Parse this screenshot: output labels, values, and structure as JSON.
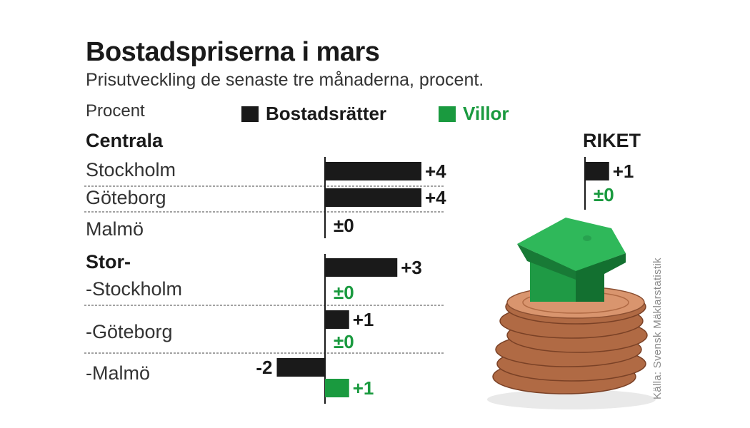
{
  "title": "Bostadspriserna i mars",
  "subtitle": "Prisutveckling de senaste tre månaderna, procent.",
  "unit_label": "Procent",
  "legend": [
    {
      "label": "Bostadsrätter",
      "color": "#1a1a1a"
    },
    {
      "label": "Villor",
      "color": "#1a9a3f"
    }
  ],
  "source": "Källa: Svensk Mäklarstatistik",
  "groups": {
    "centrala": "Centrala",
    "stor": "Stor-",
    "riket": "RIKET"
  },
  "rows": {
    "stockholm": "Stockholm",
    "goteborg": "Göteborg",
    "malmo": "Malmö",
    "stor_stockholm": "-Stockholm",
    "stor_goteborg": "-Göteborg",
    "stor_malmo": "-Malmö"
  },
  "chart_data": {
    "type": "bar",
    "orientation": "horizontal",
    "title": "Bostadspriserna i mars",
    "subtitle": "Prisutveckling de senaste tre månaderna, procent.",
    "unit": "Procent",
    "series": [
      {
        "name": "Bostadsrätter",
        "color": "#1a1a1a"
      },
      {
        "name": "Villor",
        "color": "#1a9a3f"
      }
    ],
    "items": [
      {
        "id": "stockholm",
        "group": "Centrala",
        "category": "Stockholm",
        "series": "Bostadsrätter",
        "value": 4,
        "label": "+4"
      },
      {
        "id": "goteborg",
        "group": "Centrala",
        "category": "Göteborg",
        "series": "Bostadsrätter",
        "value": 4,
        "label": "+4"
      },
      {
        "id": "malmo",
        "group": "Centrala",
        "category": "Malmö",
        "series": "Bostadsrätter",
        "value": 0,
        "label": "±0"
      },
      {
        "id": "stor_sthlm_br",
        "group": "Stor-",
        "category": "-Stockholm",
        "series": "Bostadsrätter",
        "value": 3,
        "label": "+3"
      },
      {
        "id": "stor_sthlm_v",
        "group": "Stor-",
        "category": "-Stockholm",
        "series": "Villor",
        "value": 0,
        "label": "±0"
      },
      {
        "id": "stor_gbg_br",
        "group": "Stor-",
        "category": "-Göteborg",
        "series": "Bostadsrätter",
        "value": 1,
        "label": "+1"
      },
      {
        "id": "stor_gbg_v",
        "group": "Stor-",
        "category": "-Göteborg",
        "series": "Villor",
        "value": 0,
        "label": "±0"
      },
      {
        "id": "stor_malmo_br",
        "group": "Stor-",
        "category": "-Malmö",
        "series": "Bostadsrätter",
        "value": -2,
        "label": "-2"
      },
      {
        "id": "stor_malmo_v",
        "group": "Stor-",
        "category": "-Malmö",
        "series": "Villor",
        "value": 1,
        "label": "+1"
      },
      {
        "id": "riket_br",
        "group": "RIKET",
        "category": "RIKET",
        "series": "Bostadsrätter",
        "value": 1,
        "label": "+1"
      },
      {
        "id": "riket_v",
        "group": "RIKET",
        "category": "RIKET",
        "series": "Villor",
        "value": 0,
        "label": "±0"
      }
    ]
  }
}
